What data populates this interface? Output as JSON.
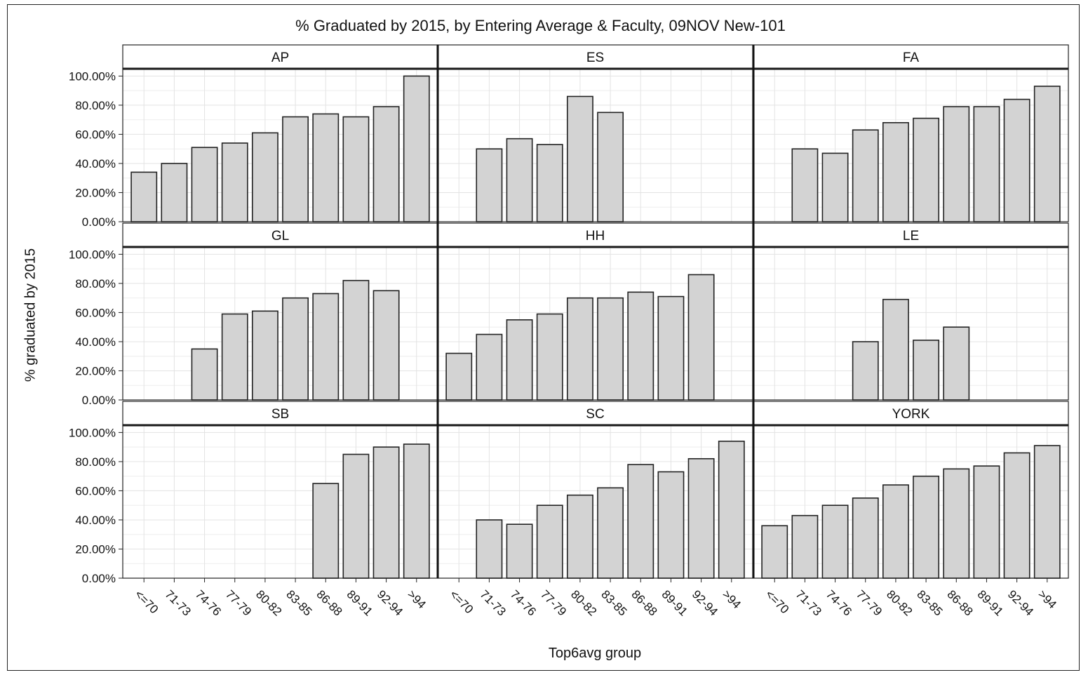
{
  "chart_data": {
    "type": "bar",
    "title": "% Graduated by 2015, by Entering Average & Faculty, 09NOV New-101",
    "xlabel": "Top6avg group",
    "ylabel": "% graduated by 2015",
    "ylim": [
      0,
      1.05
    ],
    "y_ticks": [
      "0.00%",
      "20.00%",
      "40.00%",
      "60.00%",
      "80.00%",
      "100.00%"
    ],
    "grid": true,
    "layout": "3x3 panels",
    "categories": [
      "<=70",
      "71-73",
      "74-76",
      "77-79",
      "80-82",
      "83-85",
      "86-88",
      "89-91",
      "92-94",
      ">94"
    ],
    "bar_color": "#d3d3d3",
    "panels": [
      {
        "name": "AP",
        "values": [
          0.34,
          0.4,
          0.51,
          0.54,
          0.61,
          0.72,
          0.74,
          0.72,
          0.79,
          1.0
        ]
      },
      {
        "name": "ES",
        "values": [
          null,
          0.5,
          0.57,
          0.53,
          0.86,
          0.75,
          null,
          null,
          null,
          null
        ]
      },
      {
        "name": "FA",
        "values": [
          null,
          0.5,
          0.47,
          0.63,
          0.68,
          0.71,
          0.79,
          0.79,
          0.84,
          0.93
        ]
      },
      {
        "name": "GL",
        "values": [
          null,
          null,
          0.35,
          0.59,
          0.61,
          0.7,
          0.73,
          0.82,
          0.75,
          null
        ]
      },
      {
        "name": "HH",
        "values": [
          0.32,
          0.45,
          0.55,
          0.59,
          0.7,
          0.7,
          0.74,
          0.71,
          0.86,
          null
        ]
      },
      {
        "name": "LE",
        "values": [
          null,
          null,
          null,
          0.4,
          0.69,
          0.41,
          0.5,
          null,
          null,
          null
        ]
      },
      {
        "name": "SB",
        "values": [
          null,
          null,
          null,
          null,
          null,
          null,
          0.65,
          0.85,
          0.9,
          0.92
        ]
      },
      {
        "name": "SC",
        "values": [
          null,
          0.4,
          0.37,
          0.5,
          0.57,
          0.62,
          0.78,
          0.73,
          0.82,
          0.94
        ]
      },
      {
        "name": "YORK",
        "values": [
          0.36,
          0.43,
          0.5,
          0.55,
          0.64,
          0.7,
          0.75,
          0.77,
          0.86,
          0.91
        ]
      }
    ]
  }
}
